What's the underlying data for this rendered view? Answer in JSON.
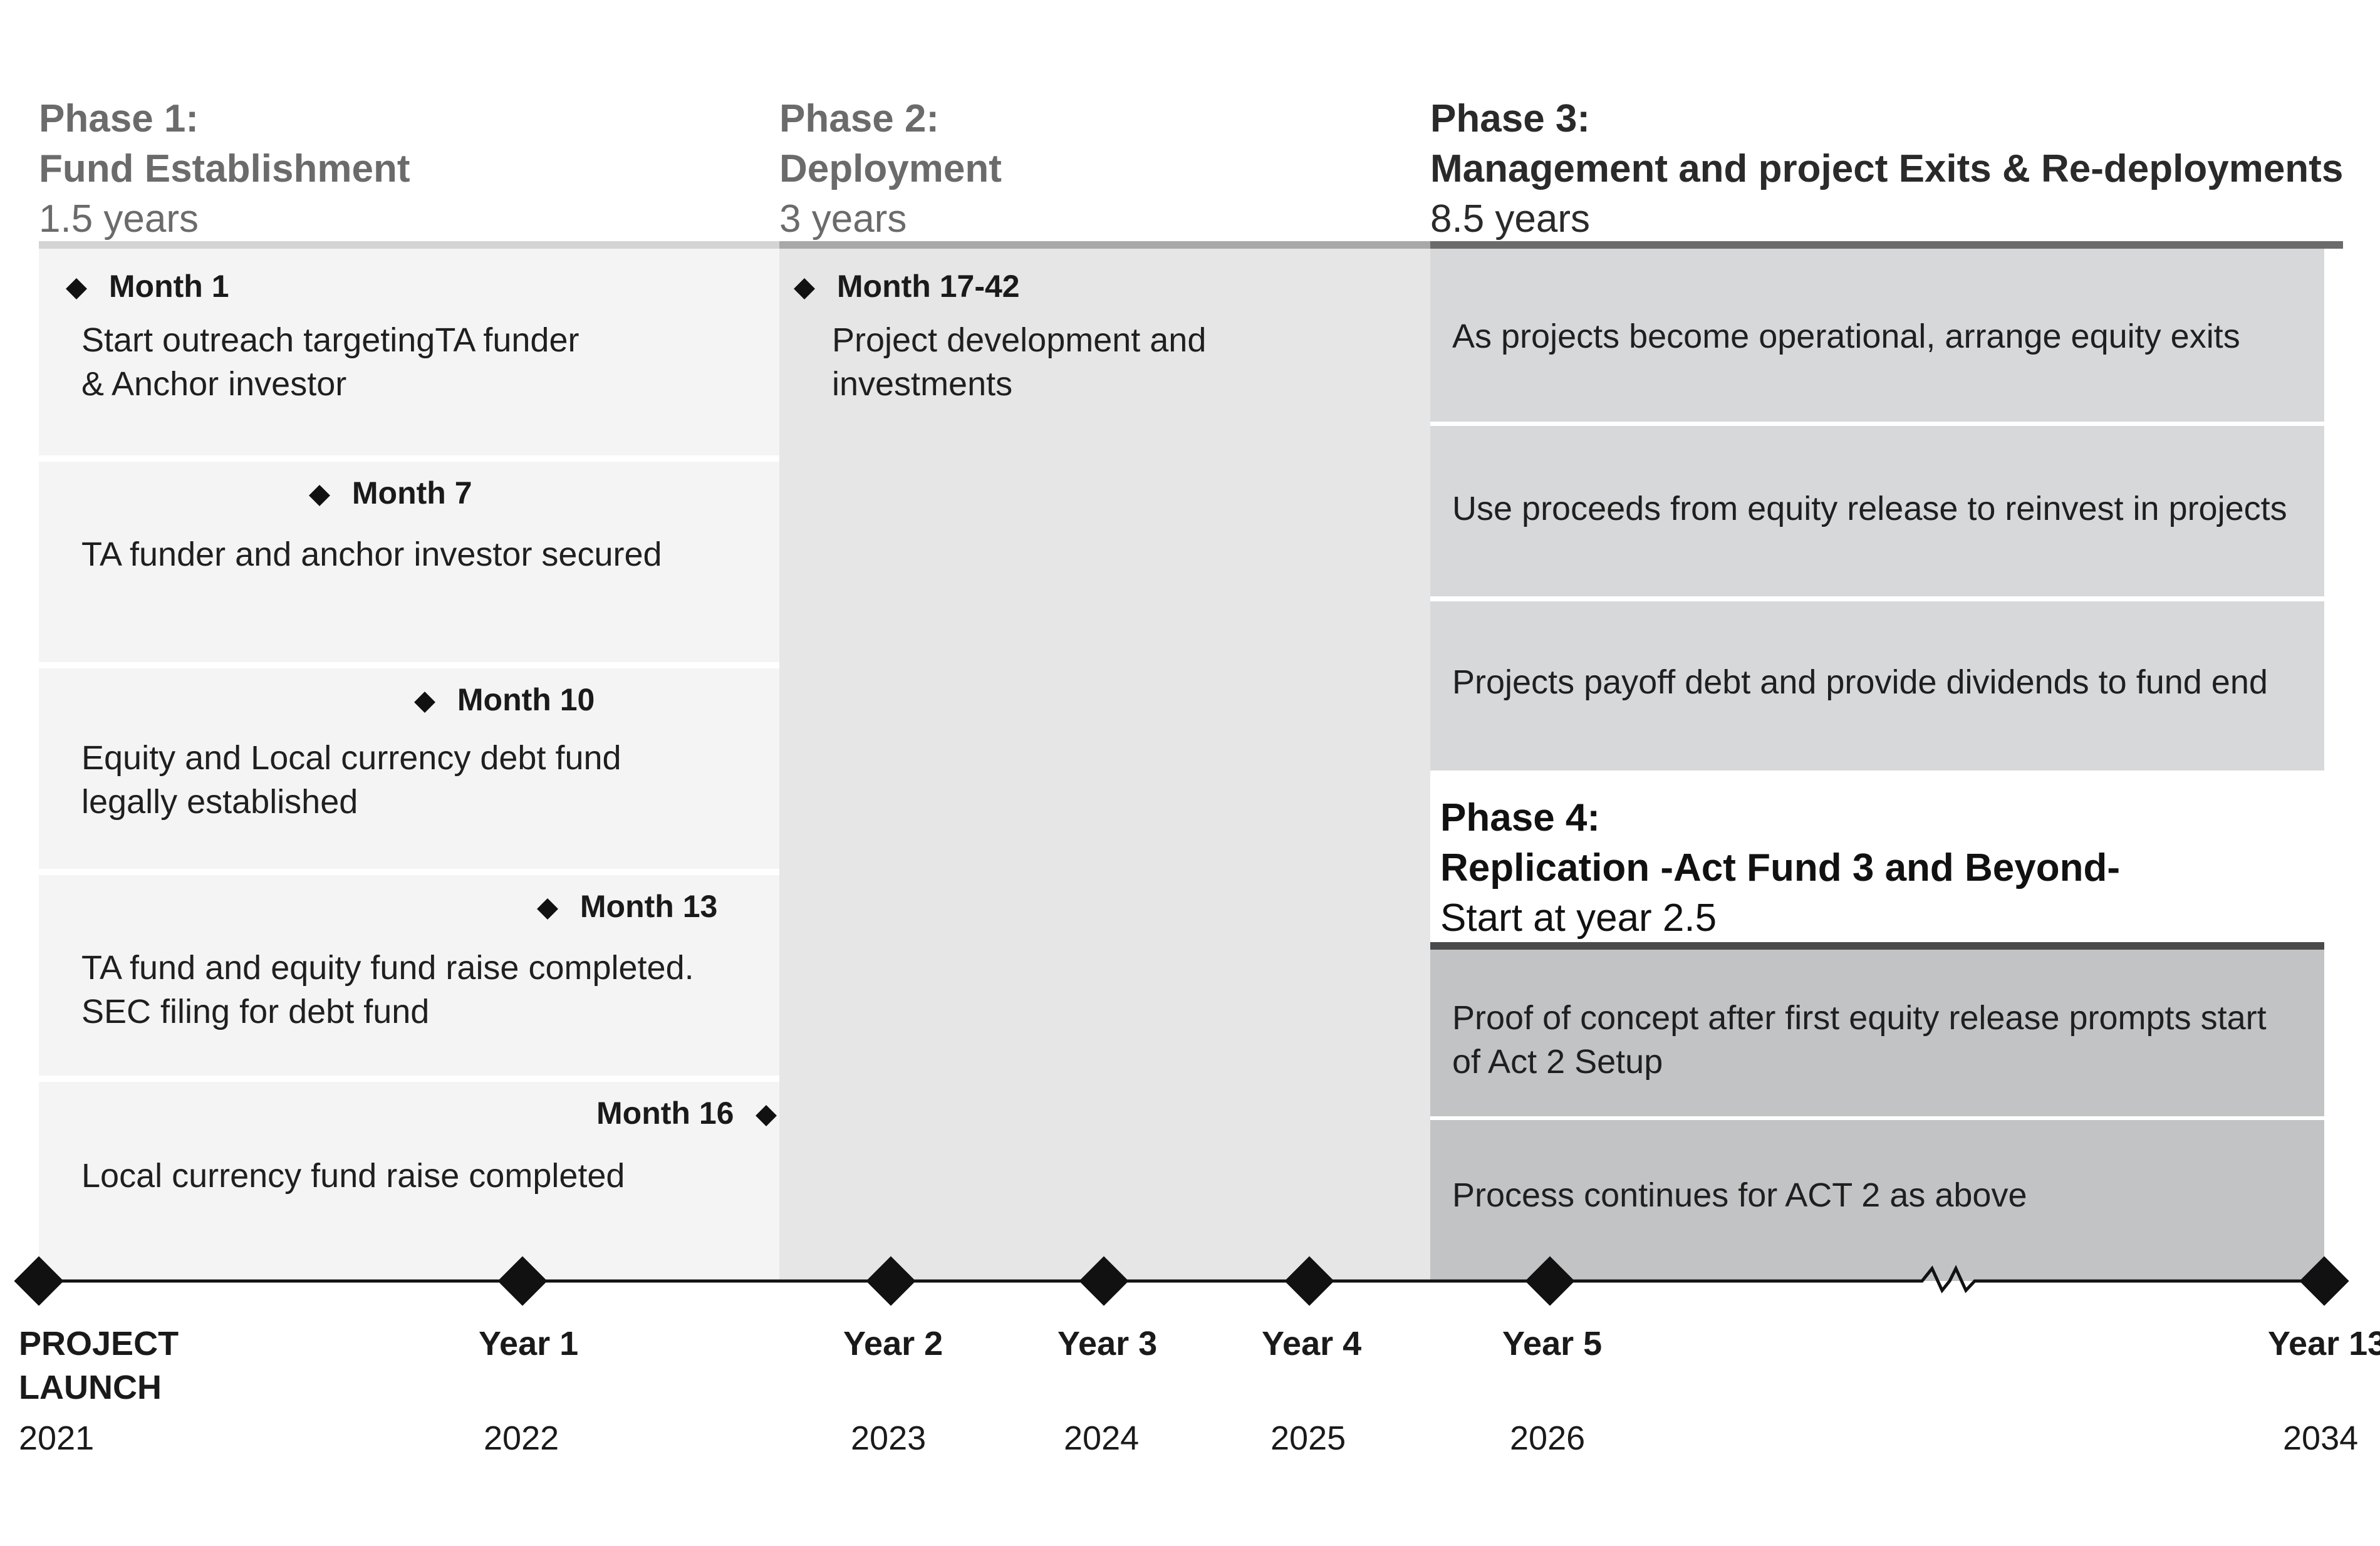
{
  "phases": [
    {
      "label": "Phase 1:",
      "name": "Fund Establishment",
      "duration": "1.5 years"
    },
    {
      "label": "Phase 2:",
      "name": "Deployment",
      "duration": "3 years"
    },
    {
      "label": "Phase 3:",
      "name": "Management and project Exits & Re-deployments",
      "duration": "8.5 years"
    },
    {
      "label": "Phase 4:",
      "name": "Replication -Act Fund 3 and Beyond-",
      "duration": "Start at year 2.5"
    }
  ],
  "phase1_milestones": [
    {
      "month": "Month 1",
      "desc_lines": [
        "Start outreach targetingTA funder",
        "& Anchor investor"
      ]
    },
    {
      "month": "Month 7",
      "desc_lines": [
        "TA funder and anchor investor secured"
      ]
    },
    {
      "month": "Month 10",
      "desc_lines": [
        "Equity and Local currency debt fund",
        "legally established"
      ]
    },
    {
      "month": "Month 13",
      "desc_lines": [
        "TA fund and equity fund raise completed.",
        "SEC filing for debt fund"
      ]
    },
    {
      "month": "Month 16",
      "desc_lines": [
        "Local currency fund raise completed"
      ]
    }
  ],
  "phase2_milestone": {
    "month": "Month 17-42",
    "desc_lines": [
      "Project development and",
      "investments"
    ]
  },
  "phase3_items": [
    "As projects become operational, arrange equity exits",
    "Use proceeds from equity release  to reinvest in projects",
    "Projects payoff debt and provide dividends to fund end"
  ],
  "phase4_items": [
    {
      "lines": [
        "Proof of concept after first equity release prompts start",
        "of Act 2 Setup"
      ]
    },
    {
      "lines": [
        "Process continues for ACT 2 as above"
      ]
    }
  ],
  "timeline": [
    {
      "label_lines": [
        "PROJECT",
        "LAUNCH"
      ],
      "year": "2021"
    },
    {
      "label_lines": [
        "Year 1"
      ],
      "year": "2022"
    },
    {
      "label_lines": [
        "Year 2"
      ],
      "year": "2023"
    },
    {
      "label_lines": [
        "Year 3"
      ],
      "year": "2024"
    },
    {
      "label_lines": [
        "Year 4"
      ],
      "year": "2025"
    },
    {
      "label_lines": [
        "Year 5"
      ],
      "year": "2026"
    },
    {
      "label_lines": [
        "Year 13"
      ],
      "year": "2034"
    }
  ],
  "colors": {
    "phase1_bg": "#f4f4f4",
    "phase2_bg": "#e6e6e7",
    "phase3_bg": "#d7d8d9",
    "phase4_bg": "#c2c3c5",
    "phase1_rule": "#d4d4d4",
    "phase2_rule": "#a8a8a9",
    "phase3_rule": "#6b6b6b",
    "phase4_rule": "#4a4a4a"
  }
}
